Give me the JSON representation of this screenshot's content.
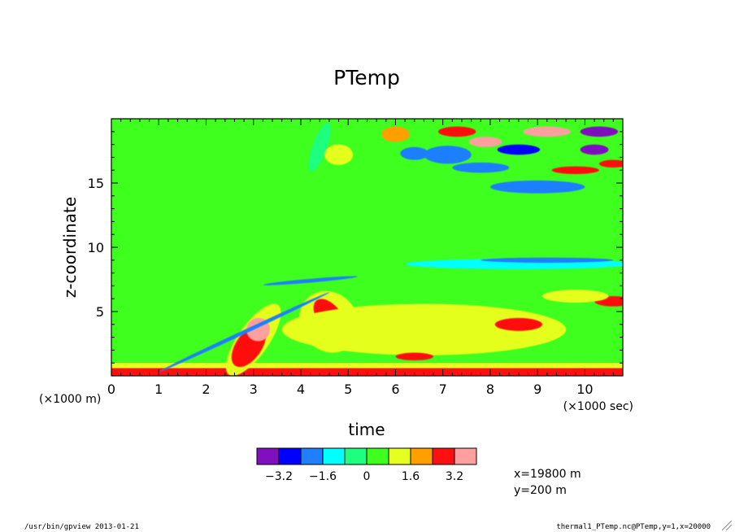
{
  "chart_data": {
    "type": "heatmap",
    "title": "PTemp",
    "xlabel": "time",
    "ylabel": "z-coordinate",
    "x_unit_label": "(×1000 sec)",
    "y_unit_label": "(×1000 m)",
    "xlim": [
      0,
      10.8
    ],
    "ylim": [
      0,
      20
    ],
    "x_ticks": [
      "0",
      "1",
      "2",
      "3",
      "4",
      "5",
      "6",
      "7",
      "8",
      "9",
      "10"
    ],
    "x_tick_values": [
      0,
      1,
      2,
      3,
      4,
      5,
      6,
      7,
      8,
      9,
      10
    ],
    "y_ticks": [
      "5",
      "10",
      "15"
    ],
    "y_tick_values": [
      5,
      10,
      15
    ],
    "color_levels": [
      -4.0,
      -3.2,
      -2.4,
      -1.6,
      -0.8,
      0,
      0.8,
      1.6,
      2.4,
      3.2,
      4.0
    ],
    "colorbar_labels": [
      "−3.2",
      "−1.6",
      "0",
      "1.6",
      "3.2"
    ],
    "colorbar_label_values": [
      -3.2,
      -1.6,
      0,
      1.6,
      3.2
    ],
    "colors": [
      "#7f0fbf",
      "#0000ff",
      "#1f7fff",
      "#00ffff",
      "#1fff7f",
      "#3fff1f",
      "#e5ff1f",
      "#ff9f00",
      "#ff0f0f",
      "#ff9f9f"
    ],
    "background_value": 0.4,
    "features": [
      {
        "shape": "band",
        "x": [
          0,
          10.8
        ],
        "y": [
          0,
          0.6
        ],
        "value": 2.6
      },
      {
        "shape": "band",
        "x": [
          0,
          10.8
        ],
        "y": [
          0.6,
          1.0
        ],
        "value": 1.2
      },
      {
        "shape": "ellipse",
        "cx": 3.0,
        "cy": 2.8,
        "rx": 0.9,
        "ry": 1.2,
        "rot": -55,
        "value": 1.4
      },
      {
        "shape": "ellipse",
        "cx": 2.9,
        "cy": 2.3,
        "rx": 0.5,
        "ry": 1.0,
        "rot": -55,
        "value": 2.8
      },
      {
        "shape": "ellipse",
        "cx": 3.1,
        "cy": 3.6,
        "rx": 0.25,
        "ry": 0.9,
        "rot": -35,
        "value": 3.4
      },
      {
        "shape": "ellipse",
        "cx": 4.6,
        "cy": 4.2,
        "rx": 0.6,
        "ry": 2.5,
        "rot": -38,
        "value": 1.4
      },
      {
        "shape": "ellipse",
        "cx": 4.6,
        "cy": 4.6,
        "rx": 0.25,
        "ry": 1.6,
        "rot": -38,
        "value": 2.6
      },
      {
        "shape": "ellipse",
        "cx": 6.6,
        "cy": 3.6,
        "rx": 3.0,
        "ry": 2.0,
        "rot": 0,
        "value": 1.1
      },
      {
        "shape": "ellipse",
        "cx": 8.6,
        "cy": 4.0,
        "rx": 0.5,
        "ry": 0.5,
        "rot": 0,
        "value": 2.6
      },
      {
        "shape": "ellipse",
        "cx": 6.4,
        "cy": 1.5,
        "rx": 0.4,
        "ry": 0.3,
        "rot": 0,
        "value": 2.5
      },
      {
        "shape": "ellipse",
        "cx": 10.6,
        "cy": 5.8,
        "rx": 0.4,
        "ry": 0.4,
        "rot": 0,
        "value": 2.8
      },
      {
        "shape": "ellipse",
        "cx": 9.8,
        "cy": 6.2,
        "rx": 0.7,
        "ry": 0.5,
        "rot": 0,
        "value": 1.4
      },
      {
        "shape": "ellipse",
        "cx": 2.8,
        "cy": 3.4,
        "rx": 2.0,
        "ry": 0.15,
        "rot": -25,
        "value": -1.8
      },
      {
        "shape": "ellipse",
        "cx": 4.2,
        "cy": 7.4,
        "rx": 1.0,
        "ry": 0.15,
        "rot": -5,
        "value": -1.8
      },
      {
        "shape": "ellipse",
        "cx": 8.6,
        "cy": 8.7,
        "rx": 2.4,
        "ry": 0.4,
        "rot": 0,
        "value": -1.6
      },
      {
        "shape": "ellipse",
        "cx": 4.4,
        "cy": 17.8,
        "rx": 0.15,
        "ry": 2.0,
        "rot": 20,
        "value": -0.6
      },
      {
        "shape": "ellipse",
        "cx": 7.1,
        "cy": 17.2,
        "rx": 0.5,
        "ry": 0.7,
        "rot": 0,
        "value": -2.0
      },
      {
        "shape": "ellipse",
        "cx": 6.4,
        "cy": 17.3,
        "rx": 0.3,
        "ry": 0.5,
        "rot": 0,
        "value": -1.8
      },
      {
        "shape": "ellipse",
        "cx": 7.8,
        "cy": 16.2,
        "rx": 0.6,
        "ry": 0.4,
        "rot": 0,
        "value": -1.7
      },
      {
        "shape": "ellipse",
        "cx": 9.0,
        "cy": 14.7,
        "rx": 1.0,
        "ry": 0.5,
        "rot": 0,
        "value": -1.8
      },
      {
        "shape": "ellipse",
        "cx": 7.3,
        "cy": 19.0,
        "rx": 0.4,
        "ry": 0.4,
        "rot": 0,
        "value": 3.0
      },
      {
        "shape": "ellipse",
        "cx": 7.9,
        "cy": 18.2,
        "rx": 0.35,
        "ry": 0.4,
        "rot": 0,
        "value": 3.3
      },
      {
        "shape": "ellipse",
        "cx": 8.6,
        "cy": 17.6,
        "rx": 0.45,
        "ry": 0.4,
        "rot": 0,
        "value": -3.0
      },
      {
        "shape": "ellipse",
        "cx": 9.2,
        "cy": 19.0,
        "rx": 0.5,
        "ry": 0.4,
        "rot": 0,
        "value": 3.4
      },
      {
        "shape": "ellipse",
        "cx": 10.3,
        "cy": 19.0,
        "rx": 0.4,
        "ry": 0.4,
        "rot": 0,
        "value": -3.3
      },
      {
        "shape": "ellipse",
        "cx": 10.2,
        "cy": 17.6,
        "rx": 0.3,
        "ry": 0.4,
        "rot": 0,
        "value": -3.5
      },
      {
        "shape": "ellipse",
        "cx": 9.8,
        "cy": 16.0,
        "rx": 0.5,
        "ry": 0.3,
        "rot": 0,
        "value": 3.0
      },
      {
        "shape": "ellipse",
        "cx": 10.6,
        "cy": 16.5,
        "rx": 0.3,
        "ry": 0.3,
        "rot": 0,
        "value": 2.8
      },
      {
        "shape": "ellipse",
        "cx": 6.0,
        "cy": 18.8,
        "rx": 0.3,
        "ry": 0.6,
        "rot": 0,
        "value": 1.6
      },
      {
        "shape": "ellipse",
        "cx": 4.8,
        "cy": 17.2,
        "rx": 0.3,
        "ry": 0.8,
        "rot": 0,
        "value": 1.4
      },
      {
        "shape": "ellipse",
        "cx": 9.2,
        "cy": 9.0,
        "rx": 1.4,
        "ry": 0.2,
        "rot": 0,
        "value": -2.0
      }
    ]
  },
  "info": {
    "position_lines": [
      "x=19800 m",
      "y=200 m"
    ]
  },
  "footer": {
    "left": "/usr/bin/gpview  2013-01-21",
    "right": "thermal1_PTemp.nc@PTemp,y=1,x=20000"
  },
  "colors": {
    "frame": "#000000",
    "background": "#ffffff"
  }
}
